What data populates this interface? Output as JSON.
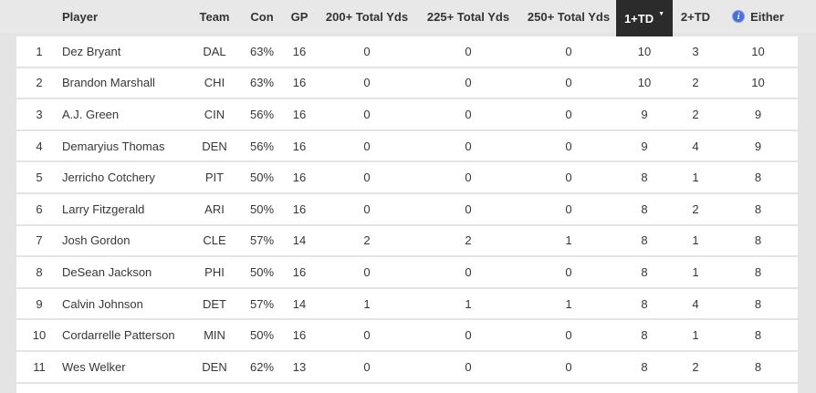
{
  "table": {
    "columns": [
      {
        "key": "rank",
        "label": ""
      },
      {
        "key": "player",
        "label": "Player"
      },
      {
        "key": "team",
        "label": "Team"
      },
      {
        "key": "con",
        "label": "Con"
      },
      {
        "key": "gp",
        "label": "GP"
      },
      {
        "key": "yds200",
        "label": "200+ Total Yds"
      },
      {
        "key": "yds225",
        "label": "225+ Total Yds"
      },
      {
        "key": "yds250",
        "label": "250+ Total Yds"
      },
      {
        "key": "td1",
        "label": "1+TD",
        "sorted": true,
        "sort_direction": "desc"
      },
      {
        "key": "td2",
        "label": "2+TD"
      },
      {
        "key": "either",
        "label": "Either",
        "has_info_icon": true
      }
    ],
    "sort_indicator": "▼",
    "rows": [
      {
        "rank": "1",
        "player": "Dez Bryant",
        "team": "DAL",
        "con": "63%",
        "gp": "16",
        "yds200": "0",
        "yds225": "0",
        "yds250": "0",
        "td1": "10",
        "td2": "3",
        "either": "10"
      },
      {
        "rank": "2",
        "player": "Brandon Marshall",
        "team": "CHI",
        "con": "63%",
        "gp": "16",
        "yds200": "0",
        "yds225": "0",
        "yds250": "0",
        "td1": "10",
        "td2": "2",
        "either": "10"
      },
      {
        "rank": "3",
        "player": "A.J. Green",
        "team": "CIN",
        "con": "56%",
        "gp": "16",
        "yds200": "0",
        "yds225": "0",
        "yds250": "0",
        "td1": "9",
        "td2": "2",
        "either": "9"
      },
      {
        "rank": "4",
        "player": "Demaryius Thomas",
        "team": "DEN",
        "con": "56%",
        "gp": "16",
        "yds200": "0",
        "yds225": "0",
        "yds250": "0",
        "td1": "9",
        "td2": "4",
        "either": "9"
      },
      {
        "rank": "5",
        "player": "Jerricho Cotchery",
        "team": "PIT",
        "con": "50%",
        "gp": "16",
        "yds200": "0",
        "yds225": "0",
        "yds250": "0",
        "td1": "8",
        "td2": "1",
        "either": "8"
      },
      {
        "rank": "6",
        "player": "Larry Fitzgerald",
        "team": "ARI",
        "con": "50%",
        "gp": "16",
        "yds200": "0",
        "yds225": "0",
        "yds250": "0",
        "td1": "8",
        "td2": "2",
        "either": "8"
      },
      {
        "rank": "7",
        "player": "Josh Gordon",
        "team": "CLE",
        "con": "57%",
        "gp": "14",
        "yds200": "2",
        "yds225": "2",
        "yds250": "1",
        "td1": "8",
        "td2": "1",
        "either": "8"
      },
      {
        "rank": "8",
        "player": "DeSean Jackson",
        "team": "PHI",
        "con": "50%",
        "gp": "16",
        "yds200": "0",
        "yds225": "0",
        "yds250": "0",
        "td1": "8",
        "td2": "1",
        "either": "8"
      },
      {
        "rank": "9",
        "player": "Calvin Johnson",
        "team": "DET",
        "con": "57%",
        "gp": "14",
        "yds200": "1",
        "yds225": "1",
        "yds250": "1",
        "td1": "8",
        "td2": "4",
        "either": "8"
      },
      {
        "rank": "10",
        "player": "Cordarrelle Patterson",
        "team": "MIN",
        "con": "50%",
        "gp": "16",
        "yds200": "0",
        "yds225": "0",
        "yds250": "0",
        "td1": "8",
        "td2": "1",
        "either": "8"
      },
      {
        "rank": "11",
        "player": "Wes Welker",
        "team": "DEN",
        "con": "62%",
        "gp": "13",
        "yds200": "0",
        "yds225": "0",
        "yds250": "0",
        "td1": "8",
        "td2": "2",
        "either": "8"
      }
    ]
  },
  "icons": {
    "info_glyph": "i"
  },
  "colors": {
    "page_bg": "#e4e4e4",
    "header_bg": "#e8e8e8",
    "row_bg": "#ffffff",
    "text": "#373737",
    "sorted_header_bg": "#2b2b2b",
    "sorted_header_text": "#ffffff",
    "info_icon_blue": "#4a6fdd"
  }
}
